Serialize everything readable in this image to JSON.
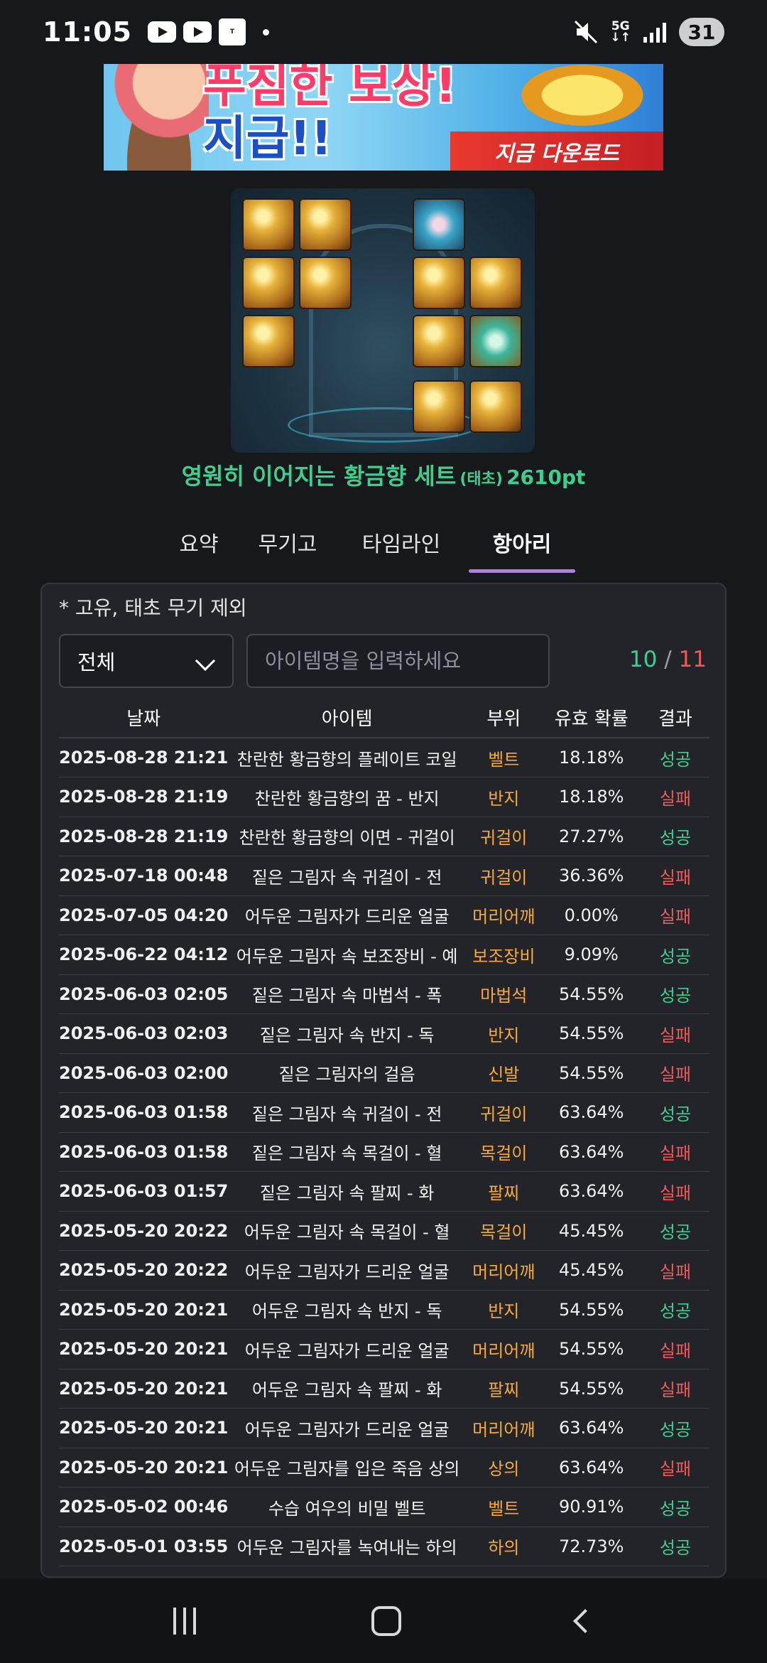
{
  "status_bar": {
    "time": "11:05",
    "network": "5G",
    "battery": "31",
    "icons": [
      "youtube-icon",
      "youtube-icon",
      "tmoney-icon",
      "mute-icon",
      "signal-icon"
    ]
  },
  "banner": {
    "headline_line1": "푸짐한 보상!",
    "headline_line2": "지급!!",
    "cta": "지금 다운로드"
  },
  "set": {
    "name": "영원히 이어지는 황금향 세트",
    "tag": "(태초)",
    "points": "2610pt"
  },
  "tabs": [
    "요약",
    "무기고",
    "타임라인",
    "항아리"
  ],
  "active_tab": "항아리",
  "panel": {
    "note": "* 고유, 태초 무기 제외",
    "filter_value": "전체",
    "search_placeholder": "아이템명을 입력하세요",
    "success_count": "10",
    "separator": "/",
    "total_count": "11"
  },
  "table": {
    "headers": [
      "날짜",
      "아이템",
      "부위",
      "유효 확률",
      "결과"
    ],
    "rows": [
      {
        "date": "2025-08-28 21:21",
        "item": "찬란한 황금향의 플레이트 코일",
        "part": "벨트",
        "prob": "18.18%",
        "result": "성공"
      },
      {
        "date": "2025-08-28 21:19",
        "item": "찬란한 황금향의 꿈 - 반지",
        "part": "반지",
        "prob": "18.18%",
        "result": "실패"
      },
      {
        "date": "2025-08-28 21:19",
        "item": "찬란한 황금향의 이면 - 귀걸이",
        "part": "귀걸이",
        "prob": "27.27%",
        "result": "성공"
      },
      {
        "date": "2025-07-18 00:48",
        "item": "짙은 그림자 속 귀걸이 - 전",
        "part": "귀걸이",
        "prob": "36.36%",
        "result": "실패"
      },
      {
        "date": "2025-07-05 04:20",
        "item": "어두운 그림자가 드리운 얼굴",
        "part": "머리어깨",
        "prob": "0.00%",
        "result": "실패"
      },
      {
        "date": "2025-06-22 04:12",
        "item": "어두운 그림자 속 보조장비 - 예",
        "part": "보조장비",
        "prob": "9.09%",
        "result": "성공"
      },
      {
        "date": "2025-06-03 02:05",
        "item": "짙은 그림자 속 마법석 - 폭",
        "part": "마법석",
        "prob": "54.55%",
        "result": "성공"
      },
      {
        "date": "2025-06-03 02:03",
        "item": "짙은 그림자 속 반지 - 독",
        "part": "반지",
        "prob": "54.55%",
        "result": "실패"
      },
      {
        "date": "2025-06-03 02:00",
        "item": "짙은 그림자의 걸음",
        "part": "신발",
        "prob": "54.55%",
        "result": "실패"
      },
      {
        "date": "2025-06-03 01:58",
        "item": "짙은 그림자 속 귀걸이 - 전",
        "part": "귀걸이",
        "prob": "63.64%",
        "result": "성공"
      },
      {
        "date": "2025-06-03 01:58",
        "item": "짙은 그림자 속 목걸이 - 혈",
        "part": "목걸이",
        "prob": "63.64%",
        "result": "실패"
      },
      {
        "date": "2025-06-03 01:57",
        "item": "짙은 그림자 속 팔찌 - 화",
        "part": "팔찌",
        "prob": "63.64%",
        "result": "실패"
      },
      {
        "date": "2025-05-20 20:22",
        "item": "어두운 그림자 속 목걸이 - 혈",
        "part": "목걸이",
        "prob": "45.45%",
        "result": "성공"
      },
      {
        "date": "2025-05-20 20:22",
        "item": "어두운 그림자가 드리운 얼굴",
        "part": "머리어깨",
        "prob": "45.45%",
        "result": "실패"
      },
      {
        "date": "2025-05-20 20:21",
        "item": "어두운 그림자 속 반지 - 독",
        "part": "반지",
        "prob": "54.55%",
        "result": "성공"
      },
      {
        "date": "2025-05-20 20:21",
        "item": "어두운 그림자가 드리운 얼굴",
        "part": "머리어깨",
        "prob": "54.55%",
        "result": "실패"
      },
      {
        "date": "2025-05-20 20:21",
        "item": "어두운 그림자 속 팔찌 - 화",
        "part": "팔찌",
        "prob": "54.55%",
        "result": "실패"
      },
      {
        "date": "2025-05-20 20:21",
        "item": "어두운 그림자가 드리운 얼굴",
        "part": "머리어깨",
        "prob": "63.64%",
        "result": "성공"
      },
      {
        "date": "2025-05-20 20:21",
        "item": "어두운 그림자를 입은 죽음 상의",
        "part": "상의",
        "prob": "63.64%",
        "result": "실패"
      },
      {
        "date": "2025-05-02 00:46",
        "item": "수습 여우의 비밀 벨트",
        "part": "벨트",
        "prob": "90.91%",
        "result": "성공"
      },
      {
        "date": "2025-05-01 03:55",
        "item": "어두운 그림자를 녹여내는 하의",
        "part": "하의",
        "prob": "72.73%",
        "result": "성공"
      }
    ]
  },
  "colors": {
    "success": "#3ecf8e",
    "fail": "#ee5a5a",
    "part": "#f6a93b",
    "tab_indicator": "#b57de8"
  }
}
